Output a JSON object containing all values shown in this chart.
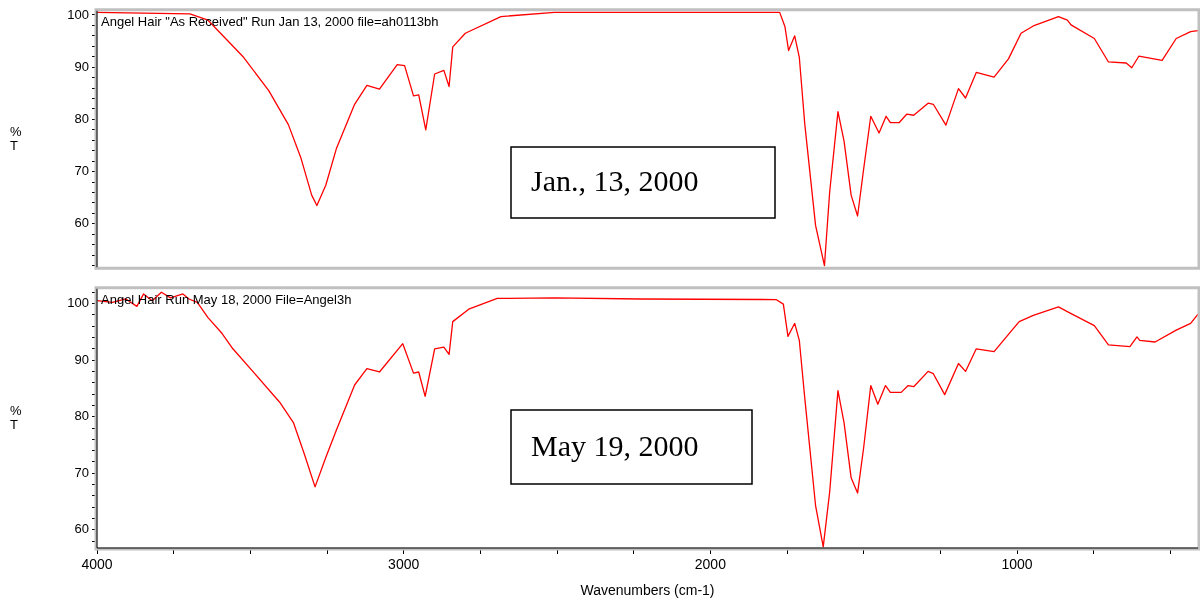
{
  "chart_data": [
    {
      "type": "line",
      "color": "#ff0000",
      "marker": "none",
      "ylabel": "%\nT",
      "tick_labels": "y",
      "annotations": [
        "Angel Hair \"As Received\" Run Jan 13, 2000 file=ah0113bh",
        "Jan., 13, 2000"
      ],
      "xlim": [
        4000,
        410
      ],
      "ylim": [
        51.7,
        100.8
      ],
      "yticks": [
        {
          "value": 52,
          "label": null
        },
        {
          "value": 54,
          "label": null
        },
        {
          "value": 56,
          "label": null
        },
        {
          "value": 58,
          "label": null
        },
        60,
        {
          "value": 62,
          "label": null
        },
        {
          "value": 64,
          "label": null
        },
        {
          "value": 66,
          "label": null
        },
        {
          "value": 68,
          "label": null
        },
        70,
        {
          "value": 72,
          "label": null
        },
        {
          "value": 74,
          "label": null
        },
        {
          "value": 76,
          "label": null
        },
        {
          "value": 78,
          "label": null
        },
        80,
        {
          "value": 82,
          "label": null
        },
        {
          "value": 84,
          "label": null
        },
        {
          "value": 86,
          "label": null
        },
        {
          "value": 88,
          "label": null
        },
        90,
        {
          "value": 92,
          "label": null
        },
        {
          "value": 94,
          "label": null
        },
        {
          "value": 96,
          "label": null
        },
        {
          "value": 98,
          "label": null
        },
        100
      ],
      "x": [
        4000,
        3697,
        3638,
        3522,
        3440,
        3376,
        3335,
        3300,
        3283,
        3254,
        3219,
        3160,
        3120,
        3079,
        3021,
        2997,
        2968,
        2951,
        2928,
        2899,
        2869,
        2852,
        2840,
        2799,
        2683,
        2508,
        2228,
        1774,
        1757,
        1745,
        1725,
        1710,
        1692,
        1657,
        1628,
        1611,
        1584,
        1564,
        1541,
        1520,
        1500,
        1477,
        1450,
        1427,
        1413,
        1384,
        1360,
        1337,
        1290,
        1273,
        1232,
        1191,
        1168,
        1133,
        1075,
        1028,
        987,
        947,
        865,
        836,
        824,
        748,
        702,
        644,
        626,
        603,
        527,
        481,
        434,
        410
      ],
      "values": [
        100.5,
        100.2,
        99.0,
        91.9,
        85.5,
        79.0,
        72.6,
        65.5,
        63.5,
        67.4,
        74.5,
        82.9,
        86.5,
        85.8,
        90.5,
        90.3,
        84.5,
        84.7,
        78.0,
        88.7,
        89.4,
        86.3,
        93.9,
        96.5,
        99.7,
        100.5,
        100.5,
        100.5,
        97.8,
        93.2,
        96.0,
        91.9,
        79.0,
        59.7,
        52.0,
        66.1,
        81.5,
        75.8,
        65.5,
        61.5,
        70.6,
        80.6,
        77.4,
        80.6,
        79.4,
        79.4,
        81.0,
        80.8,
        83.1,
        82.9,
        78.9,
        85.9,
        84.1,
        89.0,
        88.1,
        91.6,
        96.5,
        97.9,
        99.7,
        99.0,
        98.1,
        95.5,
        91.0,
        90.8,
        89.9,
        92.1,
        91.3,
        95.5,
        96.8,
        97.0
      ]
    },
    {
      "type": "line",
      "color": "#ff0000",
      "marker": "none",
      "ylabel": "%\nT",
      "xlabel": "Wavenumbers (cm-1)",
      "annotations": [
        "Angel Hair Run May 18, 2000 File=Angel3h",
        "May 19, 2000"
      ],
      "xlim": [
        4000,
        410
      ],
      "ylim": [
        56.8,
        102.6
      ],
      "xticks": [
        4000,
        {
          "value": 3750,
          "label": null
        },
        {
          "value": 3500,
          "label": null
        },
        {
          "value": 3250,
          "label": null
        },
        3000,
        {
          "value": 2750,
          "label": null
        },
        {
          "value": 2500,
          "label": null
        },
        {
          "value": 2250,
          "label": null
        },
        2000,
        {
          "value": 1750,
          "label": null
        },
        {
          "value": 1500,
          "label": null
        },
        {
          "value": 1250,
          "label": null
        },
        1000,
        {
          "value": 750,
          "label": null
        },
        {
          "value": 500,
          "label": null
        }
      ],
      "yticks": [
        {
          "value": 58,
          "label": null
        },
        60,
        {
          "value": 62,
          "label": null
        },
        {
          "value": 64,
          "label": null
        },
        {
          "value": 66,
          "label": null
        },
        {
          "value": 68,
          "label": null
        },
        70,
        {
          "value": 72,
          "label": null
        },
        {
          "value": 74,
          "label": null
        },
        {
          "value": 76,
          "label": null
        },
        {
          "value": 78,
          "label": null
        },
        80,
        {
          "value": 82,
          "label": null
        },
        {
          "value": 84,
          "label": null
        },
        {
          "value": 86,
          "label": null
        },
        {
          "value": 88,
          "label": null
        },
        90,
        {
          "value": 92,
          "label": null
        },
        {
          "value": 94,
          "label": null
        },
        {
          "value": 96,
          "label": null
        },
        {
          "value": 98,
          "label": null
        },
        100,
        {
          "value": 102,
          "label": null
        }
      ],
      "x": [
        4000,
        3950,
        3906,
        3870,
        3848,
        3820,
        3790,
        3760,
        3720,
        3700,
        3673,
        3638,
        3592,
        3557,
        3487,
        3405,
        3359,
        3324,
        3289,
        3254,
        3219,
        3160,
        3120,
        3079,
        3003,
        2968,
        2951,
        2930,
        2899,
        2869,
        2852,
        2840,
        2788,
        2695,
        2508,
        2228,
        1786,
        1762,
        1747,
        1725,
        1710,
        1692,
        1657,
        1632,
        1611,
        1584,
        1564,
        1541,
        1520,
        1500,
        1477,
        1454,
        1429,
        1413,
        1378,
        1355,
        1337,
        1290,
        1273,
        1236,
        1191,
        1168,
        1133,
        1075,
        993,
        947,
        865,
        830,
        748,
        702,
        632,
        609,
        600,
        550,
        481,
        434,
        410
      ],
      "values": [
        100.5,
        100.2,
        100.8,
        99.5,
        101.7,
        100.5,
        102.0,
        101.0,
        101.7,
        100.8,
        100.2,
        97.5,
        94.7,
        92.0,
        87.7,
        82.6,
        78.9,
        73.4,
        67.6,
        72.8,
        77.7,
        85.6,
        88.5,
        87.9,
        92.9,
        87.7,
        87.9,
        83.6,
        92.0,
        92.3,
        91.0,
        96.8,
        99.0,
        100.9,
        101.0,
        100.8,
        100.7,
        99.9,
        94.2,
        96.5,
        93.5,
        83.2,
        64.3,
        57.0,
        66.7,
        84.6,
        78.9,
        69.2,
        66.5,
        74.6,
        85.5,
        82.2,
        85.5,
        84.3,
        84.3,
        85.5,
        85.3,
        88.0,
        87.6,
        83.9,
        89.4,
        88.0,
        92.0,
        91.5,
        96.8,
        97.9,
        99.4,
        98.4,
        96.1,
        92.7,
        92.4,
        94.1,
        93.5,
        93.2,
        95.3,
        96.5,
        98.1
      ]
    }
  ]
}
